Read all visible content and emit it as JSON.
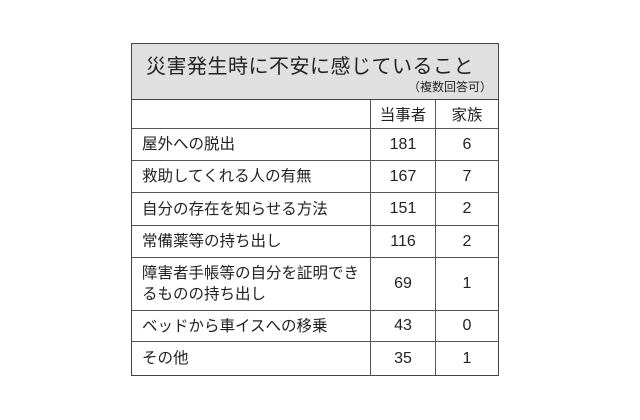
{
  "title": "災害発生時に不安に感じていること",
  "subtitle": "（複数回答可）",
  "columns": [
    "",
    "当事者",
    "家族"
  ],
  "rows": [
    {
      "label": "屋外への脱出",
      "self": "181",
      "family": "6"
    },
    {
      "label": "救助してくれる人の有無",
      "self": "167",
      "family": "7"
    },
    {
      "label": "自分の存在を知らせる方法",
      "self": "151",
      "family": "2"
    },
    {
      "label": "常備薬等の持ち出し",
      "self": "116",
      "family": "2"
    },
    {
      "label": "障害者手帳等の自分を証明できるものの持ち出し",
      "self": "69",
      "family": "1"
    },
    {
      "label": "ベッドから車イスへの移乗",
      "self": "43",
      "family": "0"
    },
    {
      "label": "その他",
      "self": "35",
      "family": "1"
    }
  ]
}
